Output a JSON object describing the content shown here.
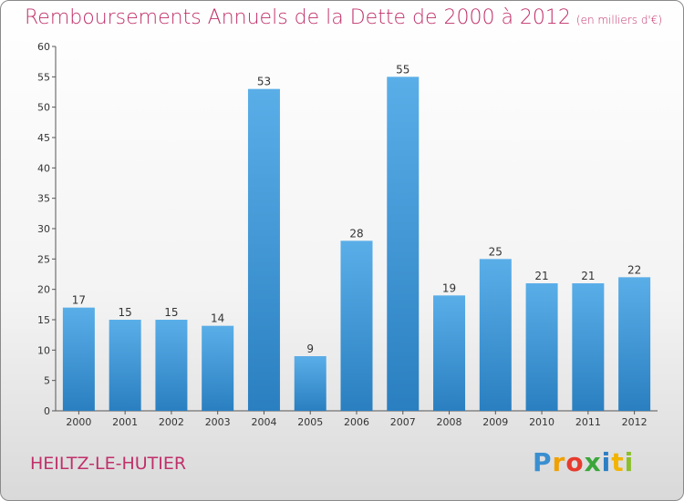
{
  "title": "Remboursements Annuels de la Dette de 2000 à 2012",
  "unit_note": "(en milliers d'€)",
  "location": "HEILTZ-LE-HUTIER",
  "logo": "Proxiti",
  "colors": {
    "title": "#c0306a",
    "bar_top": "#5aaee8",
    "bar_bottom": "#2a7fc0"
  },
  "chart_data": {
    "type": "bar",
    "categories": [
      "2000",
      "2001",
      "2002",
      "2003",
      "2004",
      "2005",
      "2006",
      "2007",
      "2008",
      "2009",
      "2010",
      "2011",
      "2012"
    ],
    "values": [
      17,
      15,
      15,
      14,
      53,
      9,
      28,
      55,
      19,
      25,
      21,
      21,
      22
    ],
    "ylim": [
      0,
      60
    ],
    "yticks": [
      0,
      5,
      10,
      15,
      20,
      25,
      30,
      35,
      40,
      45,
      50,
      55,
      60
    ],
    "data_labels": true,
    "grid": false
  }
}
